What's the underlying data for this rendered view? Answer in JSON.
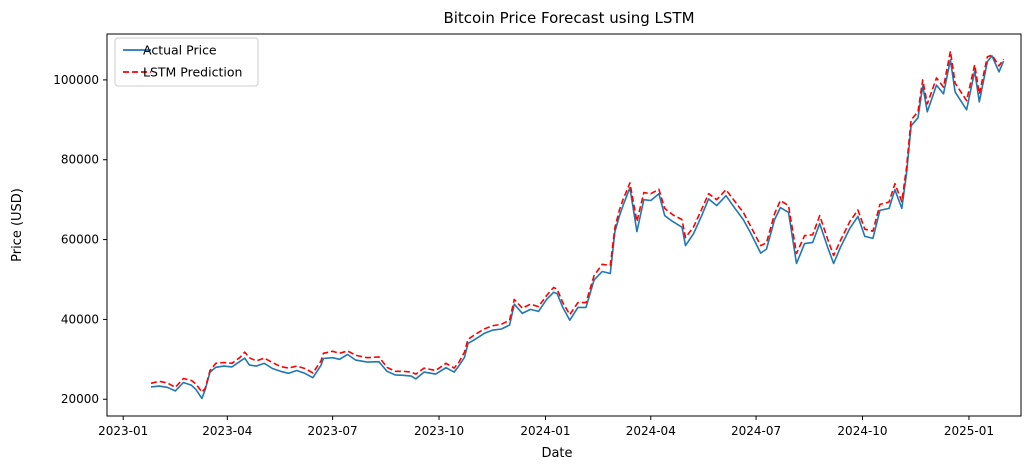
{
  "chart_data": {
    "type": "line",
    "title": "Bitcoin Price Forecast using LSTM",
    "xlabel": "Date",
    "ylabel": "Price (USD)",
    "x_range": [
      "2022-12-18",
      "2025-02-15"
    ],
    "ylim": [
      15800,
      111500
    ],
    "grid": false,
    "legend_position": "top-left",
    "x_ticks": [
      "2023-01",
      "2023-04",
      "2023-07",
      "2023-10",
      "2024-01",
      "2024-04",
      "2024-07",
      "2024-10",
      "2025-01"
    ],
    "y_ticks": [
      20000,
      40000,
      60000,
      80000,
      100000
    ],
    "series": [
      {
        "name": "Actual Price",
        "color": "#1f77b4",
        "style": "solid",
        "points": [
          [
            "2023-01-25",
            23100
          ],
          [
            "2023-02-01",
            23300
          ],
          [
            "2023-02-08",
            23000
          ],
          [
            "2023-02-15",
            22100
          ],
          [
            "2023-02-22",
            24200
          ],
          [
            "2023-03-01",
            23500
          ],
          [
            "2023-03-05",
            22400
          ],
          [
            "2023-03-10",
            20200
          ],
          [
            "2023-03-13",
            22500
          ],
          [
            "2023-03-17",
            26800
          ],
          [
            "2023-03-22",
            28000
          ],
          [
            "2023-03-29",
            28300
          ],
          [
            "2023-04-05",
            28100
          ],
          [
            "2023-04-12",
            29500
          ],
          [
            "2023-04-16",
            30300
          ],
          [
            "2023-04-20",
            28600
          ],
          [
            "2023-04-26",
            28300
          ],
          [
            "2023-05-03",
            29000
          ],
          [
            "2023-05-10",
            27700
          ],
          [
            "2023-05-17",
            27000
          ],
          [
            "2023-05-24",
            26500
          ],
          [
            "2023-05-31",
            27200
          ],
          [
            "2023-06-07",
            26500
          ],
          [
            "2023-06-14",
            25400
          ],
          [
            "2023-06-21",
            28500
          ],
          [
            "2023-06-23",
            30200
          ],
          [
            "2023-07-01",
            30400
          ],
          [
            "2023-07-07",
            30000
          ],
          [
            "2023-07-14",
            31200
          ],
          [
            "2023-07-21",
            29800
          ],
          [
            "2023-07-31",
            29300
          ],
          [
            "2023-08-10",
            29400
          ],
          [
            "2023-08-17",
            27000
          ],
          [
            "2023-08-24",
            26100
          ],
          [
            "2023-08-31",
            26000
          ],
          [
            "2023-09-07",
            25800
          ],
          [
            "2023-09-11",
            25100
          ],
          [
            "2023-09-18",
            26800
          ],
          [
            "2023-09-28",
            26300
          ],
          [
            "2023-10-07",
            27900
          ],
          [
            "2023-10-14",
            26800
          ],
          [
            "2023-10-18",
            28300
          ],
          [
            "2023-10-23",
            30500
          ],
          [
            "2023-10-26",
            34000
          ],
          [
            "2023-11-01",
            35000
          ],
          [
            "2023-11-09",
            36500
          ],
          [
            "2023-11-16",
            37300
          ],
          [
            "2023-11-24",
            37600
          ],
          [
            "2023-12-01",
            38600
          ],
          [
            "2023-12-05",
            43800
          ],
          [
            "2023-12-12",
            41500
          ],
          [
            "2023-12-19",
            42500
          ],
          [
            "2023-12-26",
            42000
          ],
          [
            "2024-01-02",
            45000
          ],
          [
            "2024-01-08",
            46800
          ],
          [
            "2024-01-11",
            46500
          ],
          [
            "2024-01-16",
            43000
          ],
          [
            "2024-01-22",
            39800
          ],
          [
            "2024-01-29",
            43000
          ],
          [
            "2024-02-05",
            43000
          ],
          [
            "2024-02-12",
            49900
          ],
          [
            "2024-02-19",
            52000
          ],
          [
            "2024-02-26",
            51500
          ],
          [
            "2024-03-01",
            62000
          ],
          [
            "2024-03-05",
            66000
          ],
          [
            "2024-03-08",
            68500
          ],
          [
            "2024-03-14",
            73000
          ],
          [
            "2024-03-20",
            62000
          ],
          [
            "2024-03-26",
            70000
          ],
          [
            "2024-04-01",
            69800
          ],
          [
            "2024-04-08",
            71500
          ],
          [
            "2024-04-13",
            66000
          ],
          [
            "2024-04-20",
            64500
          ],
          [
            "2024-04-28",
            63100
          ],
          [
            "2024-05-01",
            58500
          ],
          [
            "2024-05-08",
            61500
          ],
          [
            "2024-05-15",
            66000
          ],
          [
            "2024-05-21",
            70200
          ],
          [
            "2024-05-28",
            68500
          ],
          [
            "2024-06-05",
            71000
          ],
          [
            "2024-06-12",
            68100
          ],
          [
            "2024-06-20",
            65000
          ],
          [
            "2024-06-26",
            61800
          ],
          [
            "2024-07-05",
            56600
          ],
          [
            "2024-07-10",
            57600
          ],
          [
            "2024-07-17",
            65000
          ],
          [
            "2024-07-22",
            68000
          ],
          [
            "2024-07-29",
            66800
          ],
          [
            "2024-08-05",
            54000
          ],
          [
            "2024-08-12",
            59000
          ],
          [
            "2024-08-19",
            59300
          ],
          [
            "2024-08-25",
            64000
          ],
          [
            "2024-09-01",
            58000
          ],
          [
            "2024-09-06",
            54000
          ],
          [
            "2024-09-12",
            58100
          ],
          [
            "2024-09-20",
            62800
          ],
          [
            "2024-09-27",
            65800
          ],
          [
            "2024-10-03",
            60800
          ],
          [
            "2024-10-10",
            60300
          ],
          [
            "2024-10-16",
            67300
          ],
          [
            "2024-10-24",
            67800
          ],
          [
            "2024-10-29",
            72500
          ],
          [
            "2024-11-04",
            67800
          ],
          [
            "2024-11-08",
            76500
          ],
          [
            "2024-11-12",
            88500
          ],
          [
            "2024-11-18",
            90500
          ],
          [
            "2024-11-22",
            98500
          ],
          [
            "2024-11-26",
            92000
          ],
          [
            "2024-12-04",
            98700
          ],
          [
            "2024-12-10",
            96500
          ],
          [
            "2024-12-16",
            105000
          ],
          [
            "2024-12-20",
            97000
          ],
          [
            "2024-12-30",
            92500
          ],
          [
            "2025-01-06",
            102200
          ],
          [
            "2025-01-10",
            94500
          ],
          [
            "2025-01-17",
            104600
          ],
          [
            "2025-01-21",
            106000
          ],
          [
            "2025-01-27",
            102000
          ],
          [
            "2025-01-31",
            104700
          ]
        ]
      },
      {
        "name": "LSTM Prediction",
        "color": "#ff0000",
        "style": "dashed",
        "points": [
          [
            "2023-01-25",
            24000
          ],
          [
            "2023-02-01",
            24500
          ],
          [
            "2023-02-08",
            24100
          ],
          [
            "2023-02-15",
            23000
          ],
          [
            "2023-02-22",
            25200
          ],
          [
            "2023-03-01",
            24700
          ],
          [
            "2023-03-05",
            23800
          ],
          [
            "2023-03-10",
            21800
          ],
          [
            "2023-03-13",
            22800
          ],
          [
            "2023-03-17",
            27200
          ],
          [
            "2023-03-22",
            29000
          ],
          [
            "2023-03-29",
            29200
          ],
          [
            "2023-04-05",
            29000
          ],
          [
            "2023-04-12",
            30500
          ],
          [
            "2023-04-16",
            31800
          ],
          [
            "2023-04-20",
            30400
          ],
          [
            "2023-04-26",
            29600
          ],
          [
            "2023-05-03",
            30300
          ],
          [
            "2023-05-10",
            29200
          ],
          [
            "2023-05-17",
            28200
          ],
          [
            "2023-05-24",
            27800
          ],
          [
            "2023-05-31",
            28300
          ],
          [
            "2023-06-07",
            27700
          ],
          [
            "2023-06-14",
            26600
          ],
          [
            "2023-06-21",
            29600
          ],
          [
            "2023-06-23",
            31500
          ],
          [
            "2023-07-01",
            32000
          ],
          [
            "2023-07-07",
            31500
          ],
          [
            "2023-07-14",
            32100
          ],
          [
            "2023-07-21",
            31000
          ],
          [
            "2023-07-31",
            30400
          ],
          [
            "2023-08-10",
            30600
          ],
          [
            "2023-08-17",
            28000
          ],
          [
            "2023-08-24",
            27000
          ],
          [
            "2023-08-31",
            27000
          ],
          [
            "2023-09-07",
            26800
          ],
          [
            "2023-09-11",
            26300
          ],
          [
            "2023-09-18",
            27800
          ],
          [
            "2023-09-28",
            27200
          ],
          [
            "2023-10-07",
            29000
          ],
          [
            "2023-10-14",
            27800
          ],
          [
            "2023-10-18",
            29200
          ],
          [
            "2023-10-23",
            31800
          ],
          [
            "2023-10-26",
            35000
          ],
          [
            "2023-11-01",
            36200
          ],
          [
            "2023-11-09",
            37600
          ],
          [
            "2023-11-16",
            38400
          ],
          [
            "2023-11-24",
            38800
          ],
          [
            "2023-12-01",
            39800
          ],
          [
            "2023-12-05",
            45000
          ],
          [
            "2023-12-12",
            42800
          ],
          [
            "2023-12-19",
            43800
          ],
          [
            "2023-12-26",
            43200
          ],
          [
            "2024-01-02",
            46000
          ],
          [
            "2024-01-08",
            48000
          ],
          [
            "2024-01-11",
            47600
          ],
          [
            "2024-01-16",
            44200
          ],
          [
            "2024-01-22",
            41200
          ],
          [
            "2024-01-29",
            44200
          ],
          [
            "2024-02-05",
            44200
          ],
          [
            "2024-02-12",
            51000
          ],
          [
            "2024-02-19",
            53800
          ],
          [
            "2024-02-26",
            53500
          ],
          [
            "2024-03-01",
            63000
          ],
          [
            "2024-03-05",
            67500
          ],
          [
            "2024-03-08",
            70000
          ],
          [
            "2024-03-14",
            74200
          ],
          [
            "2024-03-20",
            64500
          ],
          [
            "2024-03-26",
            71800
          ],
          [
            "2024-04-01",
            71500
          ],
          [
            "2024-04-08",
            72600
          ],
          [
            "2024-04-13",
            67800
          ],
          [
            "2024-04-20",
            66200
          ],
          [
            "2024-04-28",
            65000
          ],
          [
            "2024-05-01",
            60500
          ],
          [
            "2024-05-08",
            63200
          ],
          [
            "2024-05-15",
            67600
          ],
          [
            "2024-05-21",
            71500
          ],
          [
            "2024-05-28",
            70000
          ],
          [
            "2024-06-05",
            72500
          ],
          [
            "2024-06-12",
            69800
          ],
          [
            "2024-06-20",
            66800
          ],
          [
            "2024-06-26",
            63500
          ],
          [
            "2024-07-05",
            58500
          ],
          [
            "2024-07-10",
            59200
          ],
          [
            "2024-07-17",
            66500
          ],
          [
            "2024-07-22",
            69800
          ],
          [
            "2024-07-29",
            68500
          ],
          [
            "2024-08-05",
            56500
          ],
          [
            "2024-08-12",
            61000
          ],
          [
            "2024-08-19",
            61200
          ],
          [
            "2024-08-25",
            66000
          ],
          [
            "2024-09-01",
            60000
          ],
          [
            "2024-09-06",
            56000
          ],
          [
            "2024-09-12",
            59800
          ],
          [
            "2024-09-20",
            64500
          ],
          [
            "2024-09-27",
            67400
          ],
          [
            "2024-10-03",
            62600
          ],
          [
            "2024-10-10",
            62100
          ],
          [
            "2024-10-16",
            68800
          ],
          [
            "2024-10-24",
            69400
          ],
          [
            "2024-10-29",
            74000
          ],
          [
            "2024-11-04",
            69500
          ],
          [
            "2024-11-08",
            78000
          ],
          [
            "2024-11-12",
            90000
          ],
          [
            "2024-11-18",
            92000
          ],
          [
            "2024-11-22",
            100000
          ],
          [
            "2024-11-26",
            94000
          ],
          [
            "2024-12-04",
            100500
          ],
          [
            "2024-12-10",
            98200
          ],
          [
            "2024-12-16",
            107200
          ],
          [
            "2024-12-20",
            99200
          ],
          [
            "2024-12-30",
            94800
          ],
          [
            "2025-01-06",
            103800
          ],
          [
            "2025-01-10",
            96500
          ],
          [
            "2025-01-17",
            105800
          ],
          [
            "2025-01-21",
            106200
          ],
          [
            "2025-01-27",
            103500
          ],
          [
            "2025-01-31",
            105200
          ]
        ]
      }
    ]
  }
}
